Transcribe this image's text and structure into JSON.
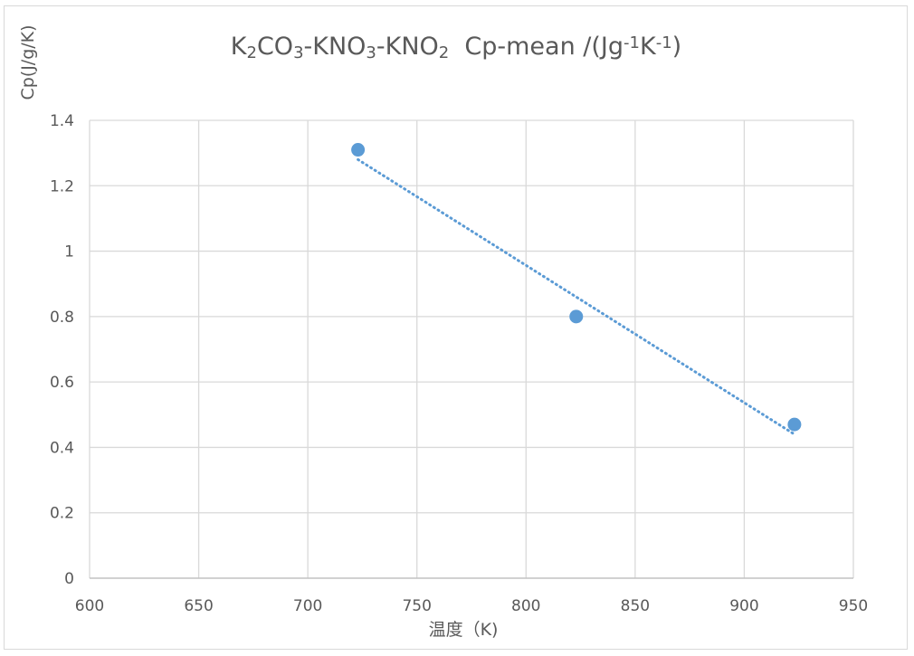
{
  "chart_data": {
    "type": "scatter",
    "title": {
      "text": "K2CO3-KNO3-KNO2  Cp-mean /(Jg-1K-1)",
      "runs": [
        {
          "t": "K"
        },
        {
          "t": "2",
          "sub": true
        },
        {
          "t": "CO"
        },
        {
          "t": "3",
          "sub": true
        },
        {
          "t": "-KNO"
        },
        {
          "t": "3",
          "sub": true
        },
        {
          "t": "-KNO"
        },
        {
          "t": "2",
          "sub": true
        },
        {
          "t": "  Cp-mean /(Jg"
        },
        {
          "t": "-1",
          "sup": true
        },
        {
          "t": "K"
        },
        {
          "t": "-1",
          "sup": true
        },
        {
          "t": ")"
        }
      ]
    },
    "xlabel": "温度（K)",
    "ylabel": "Cp(J/g/K)",
    "xlim": [
      600,
      950
    ],
    "ylim": [
      0,
      1.4
    ],
    "x_ticks": [
      "600",
      "650",
      "700",
      "750",
      "800",
      "850",
      "900",
      "950"
    ],
    "y_ticks": [
      "0",
      "0.2",
      "0.4",
      "0.6",
      "0.8",
      "1",
      "1.2",
      "1.4"
    ],
    "grid": true,
    "series": [
      {
        "x": [
          723,
          823,
          923
        ],
        "y": [
          1.31,
          0.8,
          0.47
        ],
        "color": "#5b9bd5",
        "trendline": {
          "type": "linear",
          "style": "dotted",
          "x": [
            723,
            923
          ]
        }
      }
    ]
  }
}
